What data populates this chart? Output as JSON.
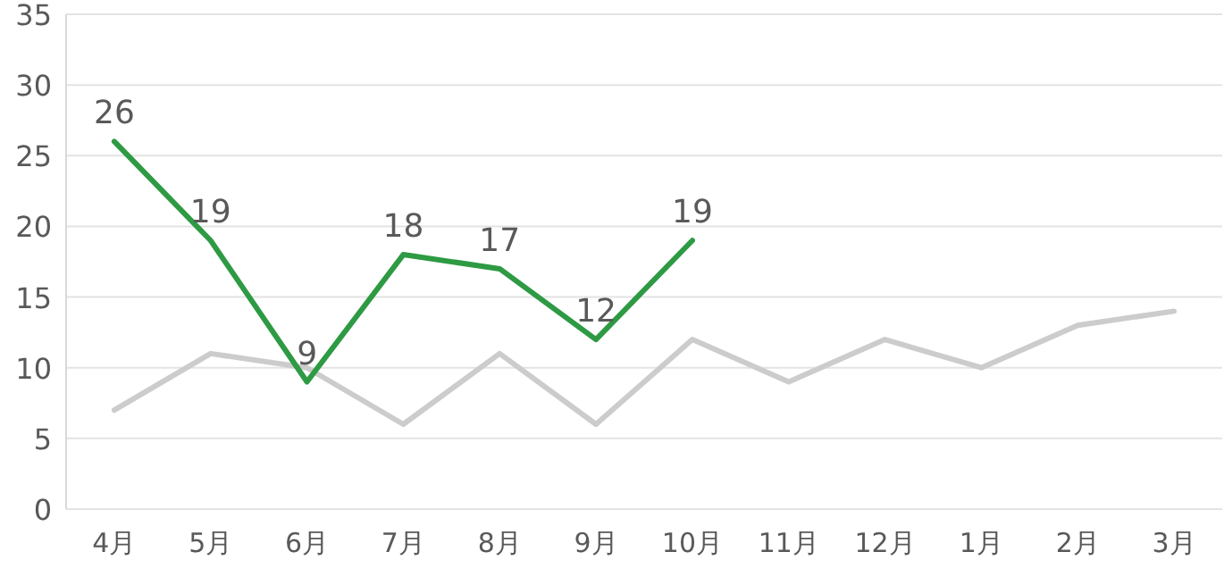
{
  "chart_data": {
    "type": "line",
    "categories": [
      "4月",
      "5月",
      "6月",
      "7月",
      "8月",
      "9月",
      "10月",
      "11月",
      "12月",
      "1月",
      "2月",
      "3月"
    ],
    "series": [
      {
        "color": "#cccccc",
        "values": [
          7,
          11,
          10,
          6,
          11,
          6,
          12,
          9,
          12,
          10,
          13,
          14
        ]
      },
      {
        "color": "#2e9a44",
        "values": [
          26,
          19,
          9,
          18,
          17,
          12,
          19,
          null,
          null,
          null,
          null,
          null
        ],
        "value_labels": [
          "26",
          "19",
          "9",
          "18",
          "17",
          "12",
          "19",
          null,
          null,
          null,
          null,
          null
        ]
      }
    ],
    "ylim": [
      0,
      35
    ],
    "yticks": [
      0,
      5,
      10,
      15,
      20,
      25,
      30,
      35
    ],
    "grid": "y",
    "marker": "none",
    "line_style": "solid"
  }
}
